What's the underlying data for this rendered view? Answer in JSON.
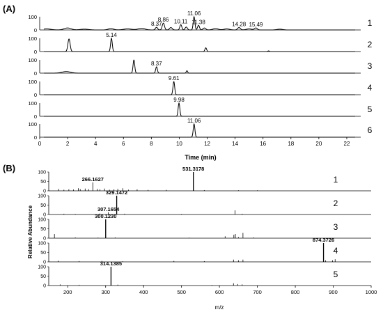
{
  "panels": {
    "A": {
      "label": "(A)",
      "xlabel": "Time (min)",
      "xlim": [
        0,
        23
      ],
      "xticks": [
        "0",
        "2",
        "4",
        "6",
        "8",
        "10",
        "12",
        "14",
        "16",
        "18",
        "20",
        "22"
      ],
      "yticks": [
        "0",
        "100"
      ]
    },
    "B": {
      "label": "(B)",
      "xlabel": "m/z",
      "ylabel": "Relative Abundance",
      "xlim": [
        150,
        1000
      ],
      "xticks": [
        "200",
        "300",
        "400",
        "500",
        "600",
        "700",
        "800",
        "900",
        "1000"
      ],
      "yticks": [
        "0",
        "50",
        "100"
      ]
    }
  },
  "chart_data": [
    {
      "type": "line",
      "panel": "A",
      "xlabel": "Time (min)",
      "ylabel": "",
      "xlim": [
        0,
        23
      ],
      "ylim": [
        0,
        100
      ],
      "traces": [
        {
          "name": "1",
          "peaks": [
            {
              "x": 0.5,
              "y": 8,
              "w": 0.3
            },
            {
              "x": 2.0,
              "y": 15,
              "w": 0.25
            },
            {
              "x": 3.2,
              "y": 6,
              "w": 0.3
            },
            {
              "x": 5.1,
              "y": 10,
              "w": 0.2
            },
            {
              "x": 6.3,
              "y": 8,
              "w": 0.3
            },
            {
              "x": 7.3,
              "y": 12,
              "w": 0.25
            },
            {
              "x": 8.37,
              "y": 20,
              "w": 0.08
            },
            {
              "x": 8.86,
              "y": 52,
              "w": 0.08
            },
            {
              "x": 9.4,
              "y": 18,
              "w": 0.1
            },
            {
              "x": 10.11,
              "y": 40,
              "w": 0.07
            },
            {
              "x": 10.5,
              "y": 22,
              "w": 0.08
            },
            {
              "x": 11.06,
              "y": 100,
              "w": 0.06
            },
            {
              "x": 11.38,
              "y": 35,
              "w": 0.07
            },
            {
              "x": 11.8,
              "y": 15,
              "w": 0.1
            },
            {
              "x": 12.6,
              "y": 10,
              "w": 0.2
            },
            {
              "x": 13.4,
              "y": 8,
              "w": 0.2
            },
            {
              "x": 14.28,
              "y": 18,
              "w": 0.1
            },
            {
              "x": 15.0,
              "y": 8,
              "w": 0.2
            },
            {
              "x": 15.49,
              "y": 15,
              "w": 0.1
            },
            {
              "x": 17.2,
              "y": 6,
              "w": 0.2
            }
          ],
          "peak_labels": [
            {
              "x": 8.37,
              "text": "8.37"
            },
            {
              "x": 8.86,
              "text": "8.86"
            },
            {
              "x": 10.11,
              "text": "10.11"
            },
            {
              "x": 11.06,
              "text": "11.06"
            },
            {
              "x": 11.38,
              "text": "11.38"
            },
            {
              "x": 14.28,
              "text": "14.28"
            },
            {
              "x": 15.49,
              "text": "15.49"
            }
          ]
        },
        {
          "name": "2",
          "peaks": [
            {
              "x": 2.1,
              "y": 95,
              "w": 0.08
            },
            {
              "x": 5.14,
              "y": 100,
              "w": 0.06
            },
            {
              "x": 11.9,
              "y": 28,
              "w": 0.06
            },
            {
              "x": 16.4,
              "y": 5,
              "w": 0.06
            }
          ],
          "peak_labels": [
            {
              "x": 5.14,
              "text": "5.14"
            }
          ]
        },
        {
          "name": "3",
          "peaks": [
            {
              "x": 1.9,
              "y": 12,
              "w": 0.3
            },
            {
              "x": 6.75,
              "y": 100,
              "w": 0.06
            },
            {
              "x": 8.37,
              "y": 48,
              "w": 0.06
            },
            {
              "x": 10.55,
              "y": 18,
              "w": 0.05
            }
          ],
          "peak_labels": [
            {
              "x": 8.37,
              "text": "8.37"
            }
          ]
        },
        {
          "name": "4",
          "peaks": [
            {
              "x": 9.61,
              "y": 100,
              "w": 0.06
            }
          ],
          "peak_labels": [
            {
              "x": 9.61,
              "text": "9.61"
            }
          ]
        },
        {
          "name": "5",
          "peaks": [
            {
              "x": 9.98,
              "y": 100,
              "w": 0.06
            }
          ],
          "peak_labels": [
            {
              "x": 9.98,
              "text": "9.98"
            }
          ]
        },
        {
          "name": "6",
          "peaks": [
            {
              "x": 11.06,
              "y": 100,
              "w": 0.06
            }
          ],
          "peak_labels": [
            {
              "x": 11.06,
              "text": "11.06"
            }
          ]
        }
      ]
    },
    {
      "type": "bar",
      "panel": "B",
      "xlabel": "m/z",
      "ylabel": "Relative Abundance",
      "xlim": [
        150,
        1000
      ],
      "ylim": [
        0,
        100
      ],
      "spectra": [
        {
          "name": "1",
          "sticks": [
            [
              176,
              10
            ],
            [
              190,
              6
            ],
            [
              203,
              8
            ],
            [
              215,
              7
            ],
            [
              228,
              14
            ],
            [
              233,
              9
            ],
            [
              246,
              12
            ],
            [
              255,
              9
            ],
            [
              266.16,
              45
            ],
            [
              278,
              10
            ],
            [
              285,
              8
            ],
            [
              297,
              12
            ],
            [
              310,
              6
            ],
            [
              322,
              8
            ],
            [
              332,
              10
            ],
            [
              345,
              14
            ],
            [
              360,
              6
            ],
            [
              383,
              8
            ],
            [
              412,
              5
            ],
            [
              460,
              5
            ],
            [
              531.32,
              100
            ],
            [
              560,
              4
            ],
            [
              650,
              3
            ],
            [
              700,
              3
            ]
          ],
          "labels": [
            {
              "x": 266.1627,
              "text": "266.1627"
            },
            {
              "x": 531.3178,
              "text": "531.3178"
            }
          ]
        },
        {
          "name": "2",
          "sticks": [
            [
              190,
              4
            ],
            [
              220,
              3
            ],
            [
              285,
              5
            ],
            [
              307.17,
              12
            ],
            [
              329.15,
              100
            ],
            [
              350,
              4
            ],
            [
              500,
              3
            ],
            [
              641,
              22
            ],
            [
              660,
              4
            ]
          ],
          "labels": [
            {
              "x": 329.1472,
              "text": "329.1472"
            },
            {
              "x": 307.1654,
              "text": "307.1654"
            }
          ]
        },
        {
          "name": "3",
          "sticks": [
            [
              165,
              22
            ],
            [
              220,
              4
            ],
            [
              280,
              3
            ],
            [
              300.12,
              100
            ],
            [
              325,
              4
            ],
            [
              520,
              3
            ],
            [
              615,
              10
            ],
            [
              638,
              18
            ],
            [
              642,
              22
            ],
            [
              650,
              6
            ],
            [
              662,
              28
            ],
            [
              690,
              4
            ]
          ],
          "labels": [
            {
              "x": 300.123,
              "text": "300.1230"
            }
          ]
        },
        {
          "name": "4",
          "sticks": [
            [
              175,
              6
            ],
            [
              230,
              4
            ],
            [
              290,
              5
            ],
            [
              345,
              3
            ],
            [
              480,
              5
            ],
            [
              560,
              4
            ],
            [
              637,
              12
            ],
            [
              650,
              8
            ],
            [
              662,
              12
            ],
            [
              874.37,
              100
            ],
            [
              880,
              8
            ],
            [
              898,
              8
            ],
            [
              905,
              14
            ]
          ],
          "labels": [
            {
              "x": 874.3726,
              "text": "874.3726"
            }
          ]
        },
        {
          "name": "5",
          "sticks": [
            [
              180,
              6
            ],
            [
              230,
              4
            ],
            [
              314.14,
              100
            ],
            [
              332,
              5
            ],
            [
              400,
              3
            ],
            [
              580,
              3
            ],
            [
              637,
              12
            ],
            [
              648,
              8
            ],
            [
              660,
              6
            ]
          ],
          "labels": [
            {
              "x": 314.1385,
              "text": "314.1385"
            }
          ]
        }
      ]
    }
  ]
}
